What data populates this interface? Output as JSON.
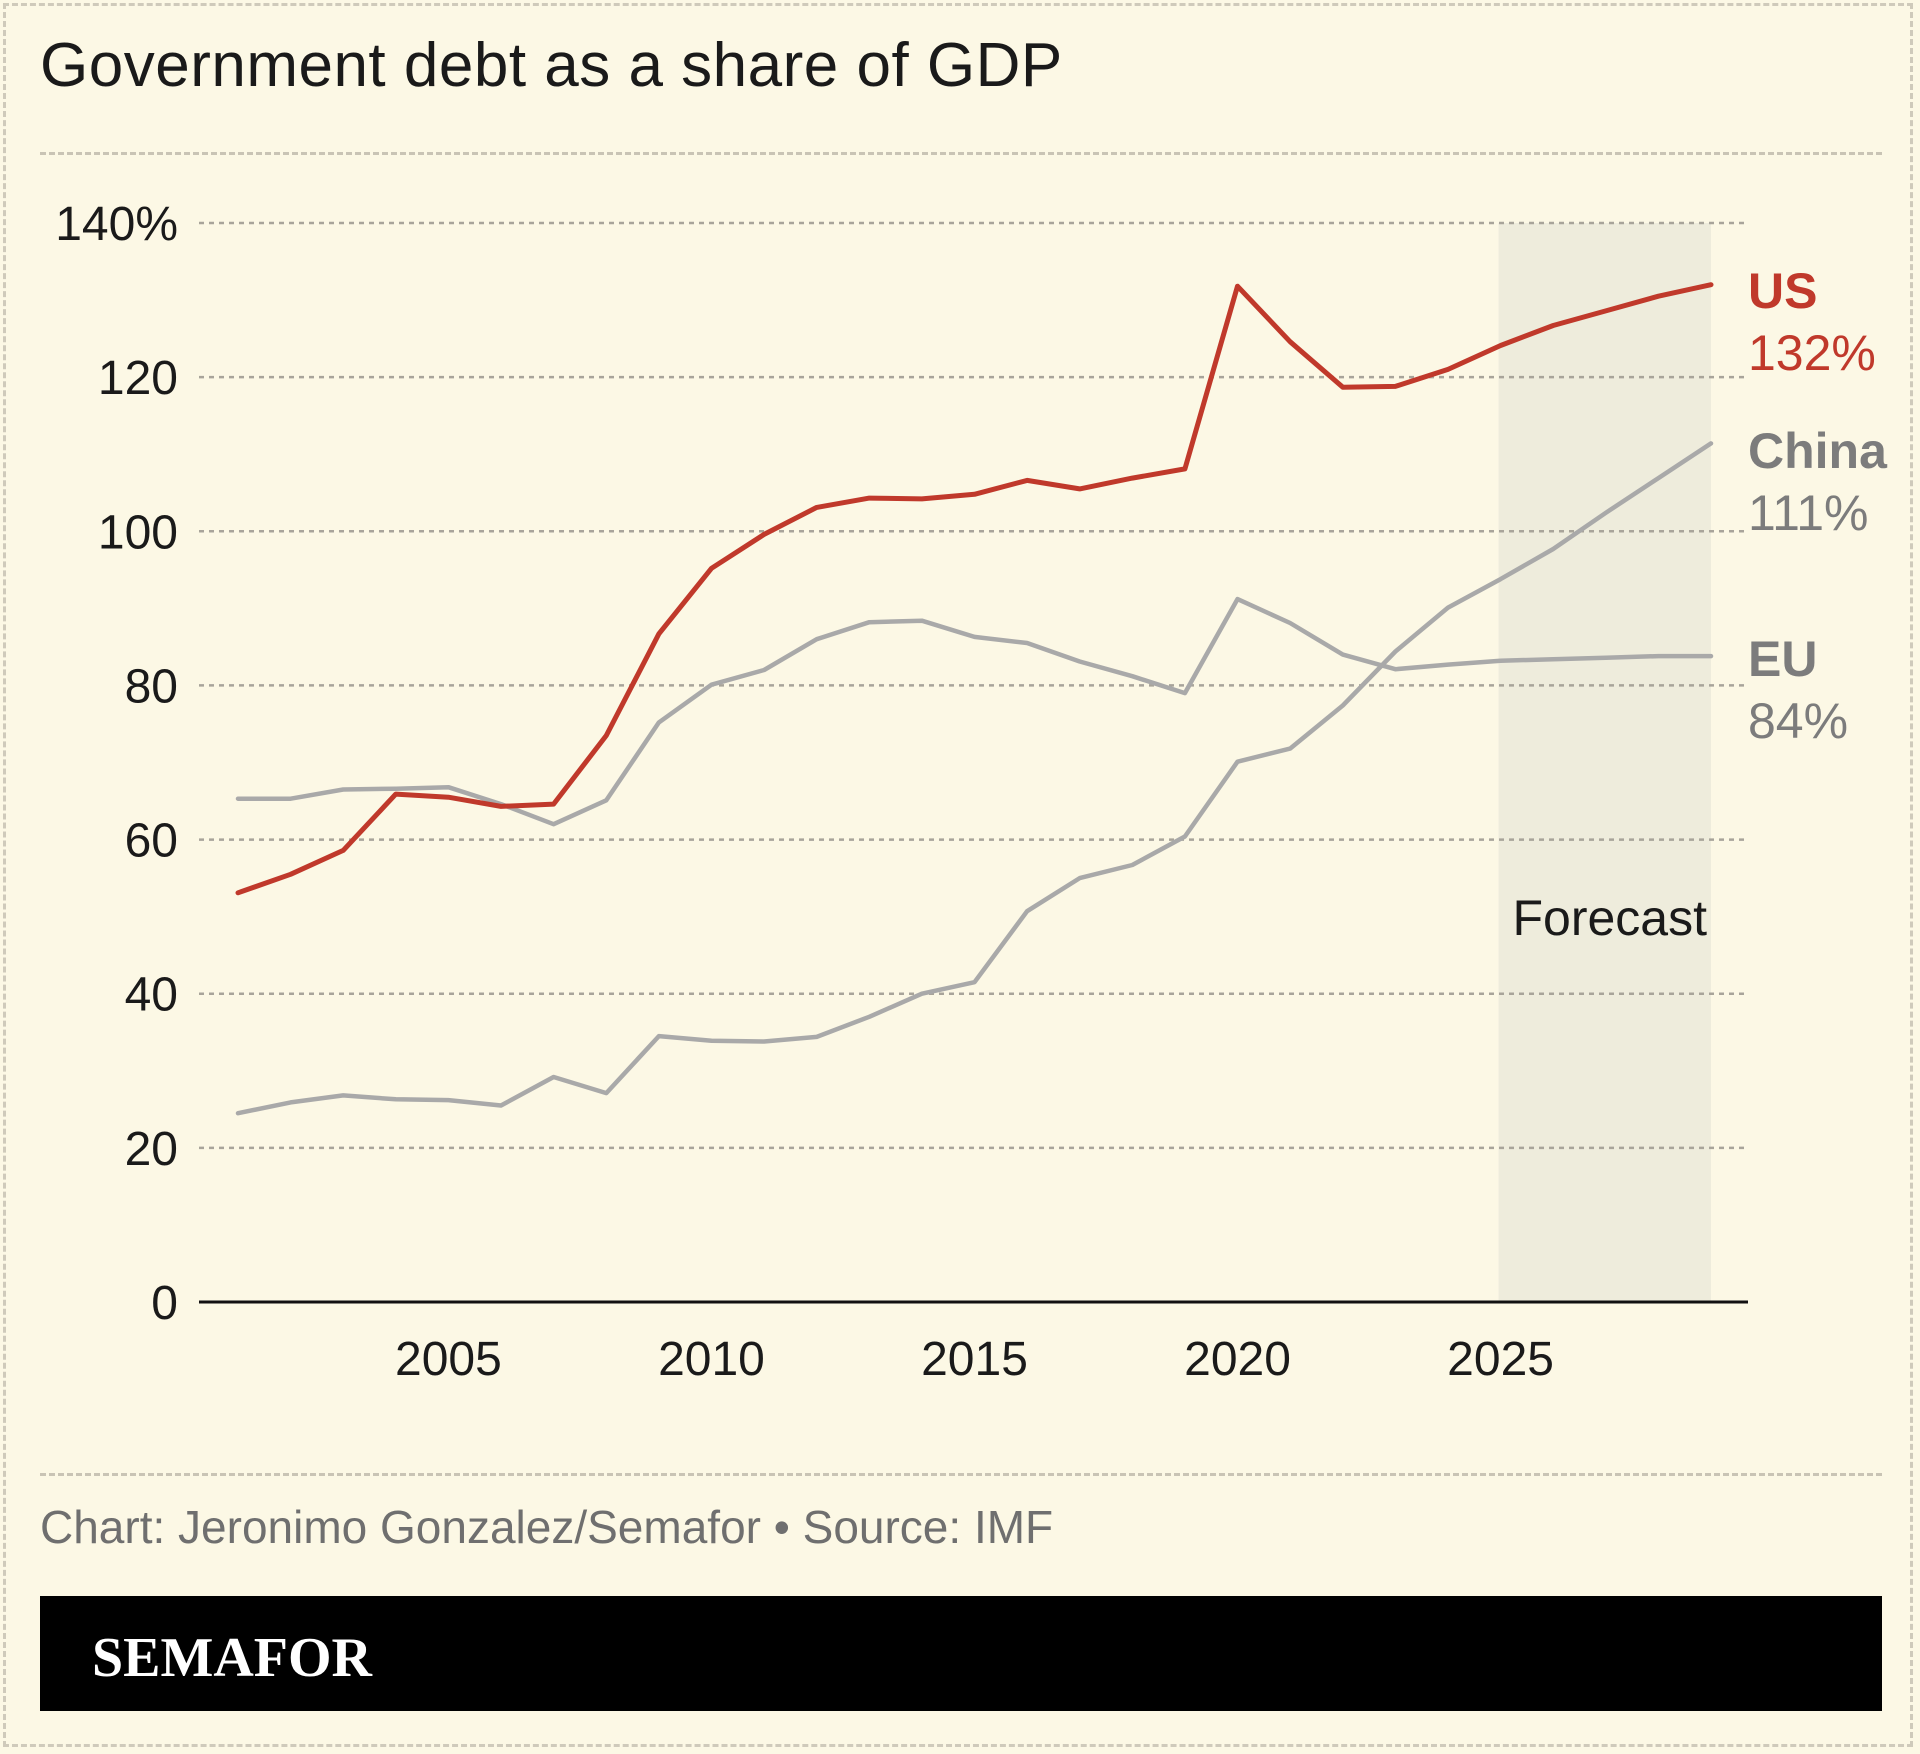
{
  "page": {
    "title": "Government debt as a share of GDP",
    "source": "Chart: Jeronimo Gonzalez/Semafor • Source: IMF",
    "brand": "SEMAFOR"
  },
  "chart_data": {
    "type": "line",
    "title": "Government debt as a share of GDP",
    "xlabel": "",
    "ylabel": "",
    "xlim": [
      2001,
      2029
    ],
    "ylim": [
      0,
      140
    ],
    "x_ticks": [
      2005,
      2010,
      2015,
      2020,
      2025
    ],
    "y_ticks": [
      {
        "value": 0,
        "label": "0"
      },
      {
        "value": 20,
        "label": "20"
      },
      {
        "value": 40,
        "label": "40"
      },
      {
        "value": 60,
        "label": "60"
      },
      {
        "value": 80,
        "label": "80"
      },
      {
        "value": 100,
        "label": "100"
      },
      {
        "value": 120,
        "label": "120"
      },
      {
        "value": 140,
        "label": "140%"
      }
    ],
    "grid": true,
    "forecast": {
      "label": "Forecast",
      "from": 2025,
      "to": 2029,
      "color": "#eeecdc"
    },
    "x": [
      2001,
      2002,
      2003,
      2004,
      2005,
      2006,
      2007,
      2008,
      2009,
      2010,
      2011,
      2012,
      2013,
      2014,
      2015,
      2016,
      2017,
      2018,
      2019,
      2020,
      2021,
      2022,
      2023,
      2024,
      2025,
      2026,
      2027,
      2028,
      2029
    ],
    "series": [
      {
        "name": "US",
        "end_label": "132%",
        "color": "#c0392b",
        "values": [
          53.1,
          55.5,
          58.6,
          65.9,
          65.5,
          64.3,
          64.6,
          73.5,
          86.7,
          95.2,
          99.6,
          103.1,
          104.3,
          104.2,
          104.8,
          106.6,
          105.5,
          106.9,
          108.1,
          131.8,
          124.6,
          118.7,
          118.8,
          121.0,
          124.1,
          126.7,
          128.6,
          130.5,
          132.0
        ]
      },
      {
        "name": "China",
        "end_label": "111%",
        "color": "#a9a9a9",
        "values": [
          24.5,
          25.9,
          26.8,
          26.3,
          26.2,
          25.5,
          29.2,
          27.1,
          34.5,
          33.9,
          33.8,
          34.4,
          37.0,
          40.0,
          41.5,
          50.7,
          55.0,
          56.7,
          60.4,
          70.1,
          71.8,
          77.4,
          84.4,
          90.1,
          93.8,
          97.7,
          102.4,
          106.9,
          111.4
        ]
      },
      {
        "name": "EU",
        "end_label": "84%",
        "color": "#a9a9a9",
        "values": [
          65.3,
          65.3,
          66.5,
          66.6,
          66.8,
          64.6,
          62.0,
          65.1,
          75.2,
          80.1,
          82.0,
          86.0,
          88.2,
          88.4,
          86.3,
          85.5,
          83.1,
          81.2,
          79.0,
          91.2,
          88.1,
          84.0,
          82.1,
          82.7,
          83.2,
          83.4,
          83.6,
          83.8,
          83.8
        ]
      }
    ]
  }
}
